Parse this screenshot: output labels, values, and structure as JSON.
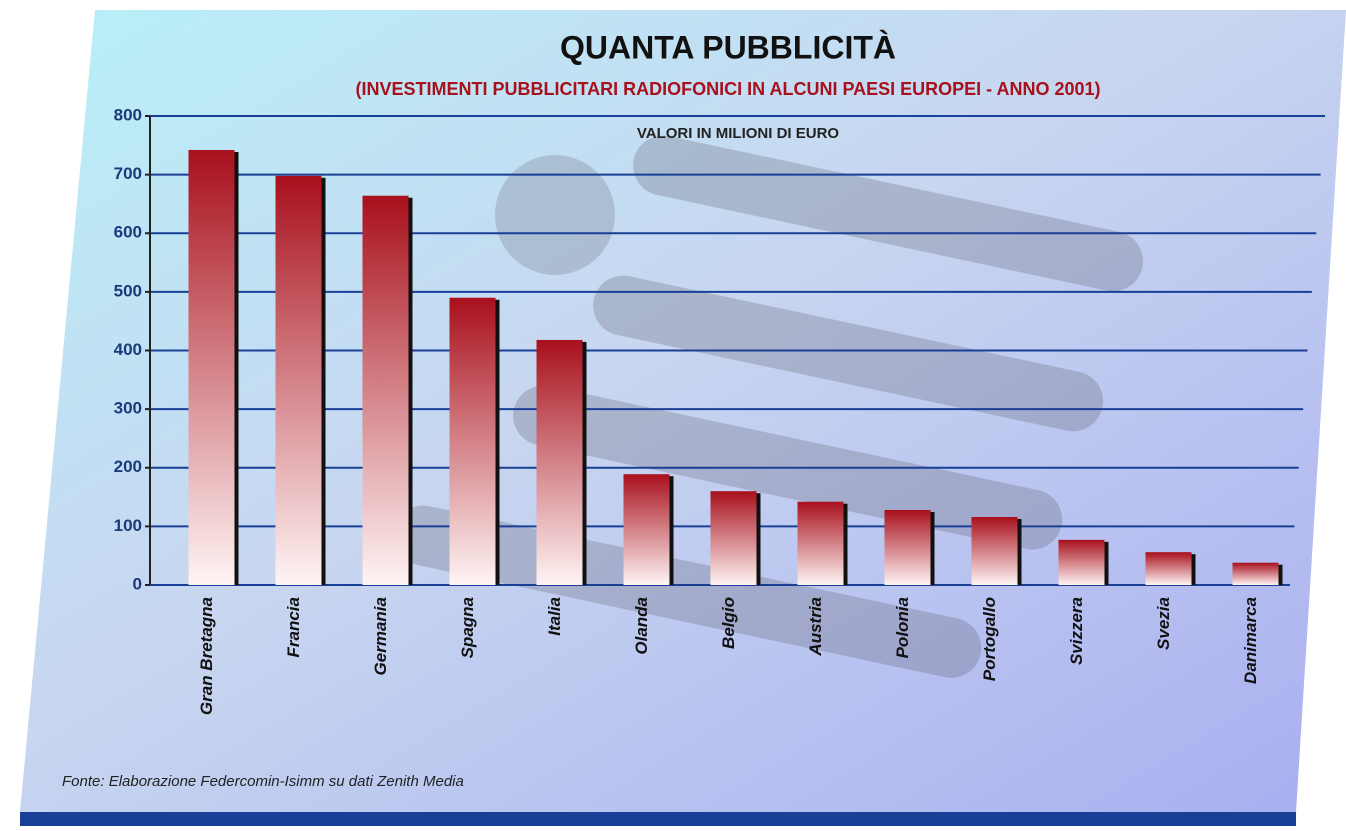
{
  "chart_data": {
    "type": "bar",
    "title": "QUANTA PUBBLICITÀ",
    "subtitle": "(INVESTIMENTI PUBBLICITARI RADIOFONICI IN ALCUNI PAESI EUROPEI - ANNO 2001)",
    "annotation": "VALORI IN MILIONI DI EURO",
    "source": "Fonte: Elaborazione Federcomin-Isimm su dati Zenith Media",
    "categories": [
      "Gran Bretagna",
      "Francia",
      "Germania",
      "Spagna",
      "Italia",
      "Olanda",
      "Belgio",
      "Austria",
      "Polonia",
      "Portogallo",
      "Svizzera",
      "Svezia",
      "Danimarca"
    ],
    "values": [
      742,
      698,
      664,
      490,
      418,
      189,
      160,
      142,
      128,
      116,
      77,
      56,
      38
    ],
    "color": "#a8101c",
    "ylim": [
      0,
      800
    ],
    "yticks": [
      0,
      100,
      200,
      300,
      400,
      500,
      600,
      700,
      800
    ],
    "grid": true
  }
}
